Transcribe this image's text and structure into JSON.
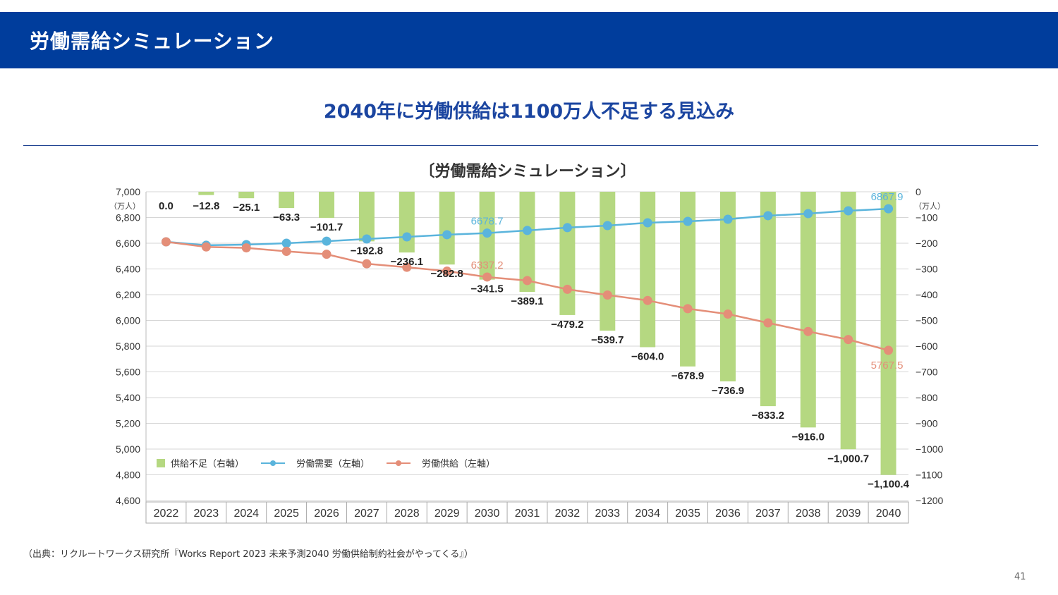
{
  "header": {
    "title": "労働需給シミュレーション"
  },
  "subtitle": "2040年に労働供給は1100万人不足する見込み",
  "source": "（出典：リクルートワークス研究所『Works Report 2023 未来予測2040 労働供給制約社会がやってくる』）",
  "page_number": "41",
  "colors": {
    "header": "#003d9c",
    "shortage": "#b5d881",
    "demand": "#5ab4dc",
    "supply": "#e48e78"
  },
  "chart_data": {
    "type": "bar",
    "title": "〔労働需給シミュレーション〕",
    "categories": [
      "2022",
      "2023",
      "2024",
      "2025",
      "2026",
      "2027",
      "2028",
      "2029",
      "2030",
      "2031",
      "2032",
      "2033",
      "2034",
      "2035",
      "2036",
      "2037",
      "2038",
      "2039",
      "2040"
    ],
    "left_axis": {
      "unit": "（万人）",
      "ylim": [
        4600,
        7000
      ],
      "ticks": [
        "7,000",
        "6,800",
        "6,600",
        "6,400",
        "6,200",
        "6,000",
        "5,800",
        "5,600",
        "5,400",
        "5,200",
        "5,000",
        "4,800",
        "4,600"
      ]
    },
    "right_axis": {
      "unit": "（万人）",
      "ylim": [
        -1200,
        0
      ],
      "ticks": [
        "0",
        "−100",
        "−200",
        "−300",
        "−400",
        "−500",
        "−600",
        "−700",
        "−800",
        "−900",
        "−1000",
        "−1100",
        "−1200"
      ]
    },
    "series": [
      {
        "name": "供給不足（右軸）",
        "type": "bar",
        "axis": "right",
        "values": [
          0.0,
          -12.8,
          -25.1,
          -63.3,
          -101.7,
          -192.8,
          -236.1,
          -282.8,
          -341.5,
          -389.1,
          -479.2,
          -539.7,
          -604.0,
          -678.9,
          -736.9,
          -833.2,
          -916.0,
          -1000.7,
          -1100.4
        ],
        "labels": [
          "0.0",
          "−12.8",
          "−25.1",
          "−63.3",
          "−101.7",
          "−192.8",
          "−236.1",
          "−282.8",
          "−341.5",
          "−389.1",
          "−479.2",
          "−539.7",
          "−604.0",
          "−678.9",
          "−736.9",
          "−833.2",
          "−916.0",
          "−1,000.7",
          "−1,100.4"
        ]
      },
      {
        "name": "労働需要（左軸）",
        "type": "line",
        "axis": "left",
        "values": [
          6611,
          6584,
          6589,
          6600,
          6616,
          6633,
          6649,
          6666,
          6678.7,
          6699,
          6721,
          6737,
          6759,
          6770,
          6786,
          6814,
          6830,
          6852,
          6867.9
        ],
        "labels": {
          "8": "6678.7",
          "18": "6867.9"
        }
      },
      {
        "name": "労働供給（左軸）",
        "type": "line",
        "axis": "left",
        "values": [
          6611,
          6571.2,
          6563.9,
          6536.7,
          6514.3,
          6440.2,
          6412.9,
          6383.2,
          6337.2,
          6309.9,
          6241.8,
          6197.3,
          6155,
          6091.1,
          6049.1,
          5980.8,
          5914,
          5851.3,
          5767.5
        ],
        "labels": {
          "8": "6337.2",
          "18": "5767.5"
        }
      }
    ],
    "legend": "bottom-left inside",
    "grid": true
  }
}
